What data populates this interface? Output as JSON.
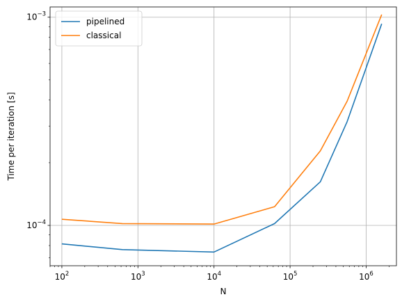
{
  "chart_data": {
    "type": "line",
    "title": "",
    "xlabel": "N",
    "ylabel": "Time per iteration [s]",
    "xscale": "log",
    "yscale": "log",
    "xlim": [
      70,
      2500000
    ],
    "ylim": [
      6.4e-05,
      0.00112
    ],
    "grid": true,
    "legend_position": "top-left",
    "x_ticks": [
      {
        "value": 100,
        "base": "10",
        "exp": "2"
      },
      {
        "value": 1000,
        "base": "10",
        "exp": "3"
      },
      {
        "value": 10000,
        "base": "10",
        "exp": "4"
      },
      {
        "value": 100000,
        "base": "10",
        "exp": "5"
      },
      {
        "value": 1000000,
        "base": "10",
        "exp": "6"
      }
    ],
    "y_ticks": [
      {
        "value": 0.0001,
        "base": "10",
        "exp": "−4"
      },
      {
        "value": 0.001,
        "base": "10",
        "exp": "−3"
      }
    ],
    "series": [
      {
        "name": "pipelined",
        "color": "#1f77b4",
        "x": [
          100,
          625,
          10000,
          62500,
          250000,
          562500,
          1600000
        ],
        "y": [
          8.15e-05,
          7.65e-05,
          7.45e-05,
          0.000102,
          0.000162,
          0.000315,
          0.00093
        ]
      },
      {
        "name": "classical",
        "color": "#ff7f0e",
        "x": [
          100,
          625,
          10000,
          62500,
          250000,
          562500,
          1600000
        ],
        "y": [
          0.000107,
          0.000102,
          0.0001015,
          0.000123,
          0.000228,
          0.000395,
          0.00103
        ]
      }
    ]
  }
}
